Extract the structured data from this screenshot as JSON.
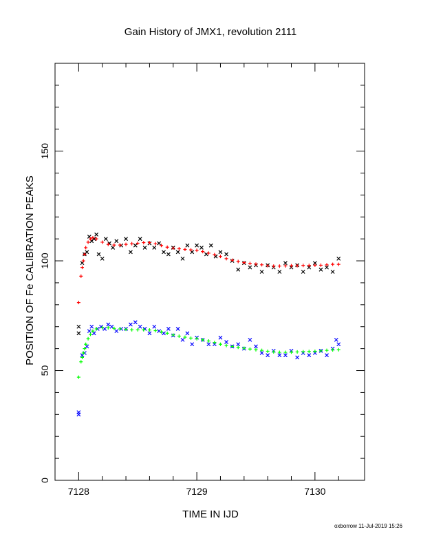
{
  "chart_data": {
    "type": "scatter",
    "title": "Gain History of JMX1, revolution 2111",
    "xlabel": "TIME IN IJD",
    "ylabel": "POSITION OF Fe CALIBRATION PEAKS",
    "xlim": [
      7127.8,
      7130.42
    ],
    "ylim": [
      0,
      190
    ],
    "xticks": [
      7128,
      7129,
      7130
    ],
    "yticks": [
      0,
      50,
      100,
      150
    ],
    "grid": false,
    "series": [
      {
        "marker": "x",
        "color": "#000000",
        "x": [
          7128.0,
          7128.0,
          7128.03,
          7128.05,
          7128.07,
          7128.09,
          7128.11,
          7128.13,
          7128.15,
          7128.17,
          7128.2,
          7128.23,
          7128.26,
          7128.29,
          7128.32,
          7128.36,
          7128.4,
          7128.44,
          7128.48,
          7128.52,
          7128.56,
          7128.6,
          7128.64,
          7128.68,
          7128.72,
          7128.76,
          7128.8,
          7128.84,
          7128.88,
          7128.92,
          7128.96,
          7129.0,
          7129.04,
          7129.08,
          7129.12,
          7129.16,
          7129.2,
          7129.25,
          7129.3,
          7129.35,
          7129.4,
          7129.45,
          7129.5,
          7129.55,
          7129.6,
          7129.65,
          7129.7,
          7129.75,
          7129.8,
          7129.85,
          7129.9,
          7129.95,
          7130.0,
          7130.05,
          7130.1,
          7130.15,
          7130.2
        ],
        "y": [
          70,
          67,
          99,
          103,
          104,
          111,
          109,
          110,
          112,
          103,
          101,
          110,
          108,
          106,
          109,
          107,
          110,
          104,
          107,
          110,
          106,
          108,
          106,
          108,
          104,
          103,
          106,
          104,
          101,
          107,
          104,
          107,
          106,
          103,
          107,
          102,
          104,
          103,
          100,
          96,
          99,
          97,
          98,
          95,
          98,
          97,
          95,
          99,
          97,
          98,
          95,
          97,
          99,
          96,
          97,
          95,
          101
        ]
      },
      {
        "marker": "+",
        "color": "#ff0000",
        "x": [
          7128.0,
          7128.02,
          7128.03,
          7128.04,
          7128.05,
          7128.06,
          7128.08,
          7128.1,
          7128.12,
          7128.15,
          7128.2,
          7128.25,
          7128.3,
          7128.35,
          7128.4,
          7128.45,
          7128.5,
          7128.55,
          7128.6,
          7128.65,
          7128.7,
          7128.75,
          7128.8,
          7128.85,
          7128.9,
          7128.95,
          7129.0,
          7129.05,
          7129.1,
          7129.15,
          7129.2,
          7129.25,
          7129.3,
          7129.35,
          7129.4,
          7129.45,
          7129.5,
          7129.55,
          7129.6,
          7129.65,
          7129.7,
          7129.75,
          7129.8,
          7129.85,
          7129.9,
          7129.95,
          7130.0,
          7130.05,
          7130.1,
          7130.15,
          7130.2
        ],
        "y": [
          81,
          93,
          97,
          100,
          103,
          106,
          108.5,
          110,
          110.5,
          110,
          108.5,
          107.5,
          107.2,
          107.2,
          107.5,
          107.8,
          108,
          108.3,
          108.3,
          107.8,
          107,
          106.2,
          105.8,
          105.5,
          105.2,
          105,
          104.8,
          104.2,
          103.5,
          102.8,
          102,
          101,
          100.3,
          99.7,
          99.2,
          98.8,
          98.5,
          98.2,
          97.8,
          97.6,
          97.6,
          97.7,
          97.8,
          97.8,
          97.9,
          97.9,
          98,
          98,
          98.2,
          98.4,
          98.4
        ]
      },
      {
        "marker": "x",
        "color": "#0000ff",
        "x": [
          7128.0,
          7128.0,
          7128.03,
          7128.05,
          7128.07,
          7128.09,
          7128.11,
          7128.13,
          7128.16,
          7128.19,
          7128.22,
          7128.25,
          7128.28,
          7128.32,
          7128.36,
          7128.4,
          7128.44,
          7128.48,
          7128.52,
          7128.56,
          7128.6,
          7128.64,
          7128.68,
          7128.72,
          7128.76,
          7128.8,
          7128.84,
          7128.88,
          7128.92,
          7128.96,
          7129.0,
          7129.05,
          7129.1,
          7129.15,
          7129.2,
          7129.25,
          7129.3,
          7129.35,
          7129.4,
          7129.45,
          7129.5,
          7129.55,
          7129.6,
          7129.65,
          7129.7,
          7129.75,
          7129.8,
          7129.85,
          7129.9,
          7129.95,
          7130.0,
          7130.05,
          7130.1,
          7130.15,
          7130.18,
          7130.2
        ],
        "y": [
          30,
          31,
          57,
          58,
          61,
          68,
          70,
          67,
          69,
          70,
          69,
          71,
          70,
          68,
          69,
          69,
          71,
          72,
          70,
          69,
          67,
          70,
          68,
          67,
          69,
          66,
          69,
          64,
          67,
          62,
          65,
          64,
          62,
          62,
          65,
          63,
          61,
          62,
          60,
          64,
          61,
          58,
          57,
          59,
          57,
          57,
          59,
          56,
          58,
          57,
          58,
          59,
          57,
          60,
          64,
          62
        ]
      },
      {
        "marker": "+",
        "color": "#00ff00",
        "x": [
          7128.0,
          7128.02,
          7128.03,
          7128.04,
          7128.05,
          7128.06,
          7128.08,
          7128.1,
          7128.12,
          7128.15,
          7128.2,
          7128.25,
          7128.3,
          7128.35,
          7128.4,
          7128.45,
          7128.5,
          7128.55,
          7128.6,
          7128.65,
          7128.7,
          7128.75,
          7128.8,
          7128.85,
          7128.9,
          7128.95,
          7129.0,
          7129.05,
          7129.1,
          7129.15,
          7129.2,
          7129.25,
          7129.3,
          7129.35,
          7129.4,
          7129.45,
          7129.5,
          7129.55,
          7129.6,
          7129.65,
          7129.7,
          7129.75,
          7129.8,
          7129.85,
          7129.9,
          7129.95,
          7130.0,
          7130.05,
          7130.1,
          7130.15,
          7130.2
        ],
        "y": [
          47,
          54,
          56,
          58,
          60,
          62,
          64.5,
          66.5,
          68,
          69,
          69.5,
          69.5,
          69.2,
          69,
          68.8,
          68.6,
          68.6,
          68.6,
          68.5,
          68.2,
          67.6,
          67,
          66.2,
          65.7,
          65.2,
          64.8,
          64.5,
          64,
          63.5,
          62.8,
          62,
          61.4,
          61,
          60.6,
          60.2,
          59.8,
          59.5,
          59.2,
          58.8,
          58.5,
          58.3,
          58.3,
          58.4,
          58.5,
          58.6,
          58.7,
          58.8,
          59,
          59.2,
          59.4,
          59.5
        ]
      }
    ],
    "footer": "oxborrow 11-Jul-2019 15:26"
  }
}
